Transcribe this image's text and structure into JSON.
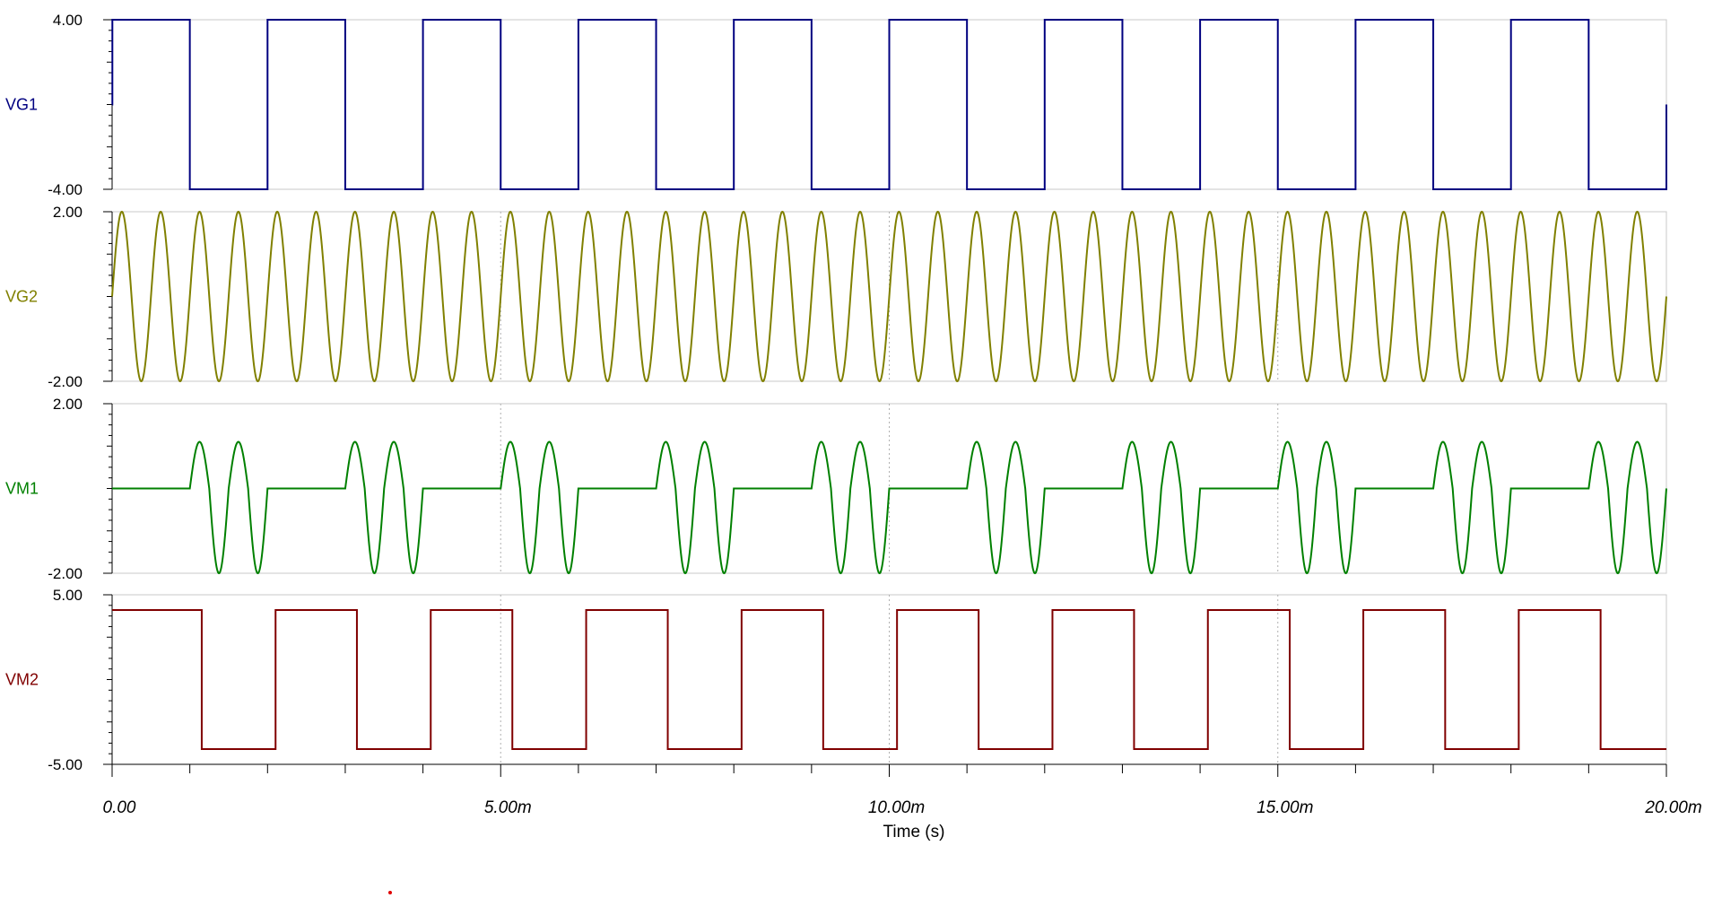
{
  "chart_data": {
    "type": "line",
    "title": "",
    "xlabel": "Time (s)",
    "x_ticks": [
      "0.00",
      "5.00m",
      "10.00m",
      "15.00m",
      "20.00m"
    ],
    "x_tick_values_ms": [
      0,
      5,
      10,
      15,
      20
    ],
    "xlim_ms": [
      0,
      20
    ],
    "x_unit": "ms",
    "grid": "dotted vertical lines at 5.00m, 10.00m, 15.00m",
    "panels": [
      {
        "name": "VG1",
        "color": "#000080",
        "ylim": [
          -4,
          4
        ],
        "y_ticks": [
          "4.00",
          "-4.00"
        ],
        "waveform": "square",
        "period_ms": 2,
        "high": 4,
        "low": -4,
        "phase_ms": 0
      },
      {
        "name": "VG2",
        "color": "#808000",
        "ylim": [
          -2,
          2
        ],
        "y_ticks": [
          "2.00",
          "-2.00"
        ],
        "waveform": "sine",
        "frequency_hz": 2000,
        "amplitude": 2
      },
      {
        "name": "VM1",
        "color": "#008000",
        "ylim": [
          -2,
          2
        ],
        "y_ticks": [
          "2.00",
          "-2.00"
        ],
        "waveform": "gated sine (VG2 passed while VG1 is low)",
        "gate_period_ms": 2,
        "carrier_frequency_hz": 2000,
        "peak": 1.1,
        "trough": -2
      },
      {
        "name": "VM2",
        "color": "#800000",
        "ylim": [
          -5,
          5
        ],
        "y_ticks": [
          "5.00",
          "-5.00"
        ],
        "waveform": "square",
        "period_ms": 2,
        "high": 4.1,
        "low": -4.1,
        "rise_ms": 1.1,
        "fall_ms": 0.1,
        "duty_high": 0.45
      }
    ]
  }
}
